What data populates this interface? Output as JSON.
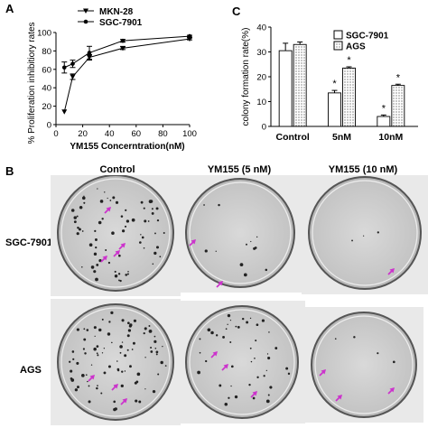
{
  "panels": {
    "a": "A",
    "b": "B",
    "c": "C"
  },
  "chart_data": [
    {
      "type": "line",
      "xlabel": "YM155 Concerntration(nM)",
      "ylabel": "% Proliferation inhibitiory rates",
      "xlim": [
        0,
        100
      ],
      "ylim": [
        0,
        100
      ],
      "xticks": [
        "0",
        "20",
        "40",
        "60",
        "80",
        "100"
      ],
      "yticks": [
        "0",
        "20",
        "40",
        "60",
        "80",
        "100"
      ],
      "legend": "top-left",
      "series": [
        {
          "name": "MKN-28",
          "marker": "triangle",
          "color": "#000000",
          "x": [
            6.25,
            12.5,
            25,
            50,
            100
          ],
          "y": [
            14,
            52,
            73,
            83,
            93
          ],
          "err": [
            0,
            3,
            3,
            1.5,
            1
          ]
        },
        {
          "name": "SGC-7901",
          "marker": "circle",
          "color": "#000000",
          "x": [
            6.25,
            12.5,
            25,
            50,
            100
          ],
          "y": [
            62,
            66,
            78,
            91,
            96
          ],
          "err": [
            6,
            4,
            7,
            1.5,
            1
          ]
        }
      ]
    },
    {
      "type": "bar",
      "title": "C",
      "ylabel": "colony formation rate(%)",
      "ylim": [
        0,
        40
      ],
      "yticks": [
        "0",
        "10",
        "20",
        "30",
        "40"
      ],
      "categories": [
        "Control",
        "5nM",
        "10nM"
      ],
      "legend": "top-right",
      "annotations": [
        "*",
        "*",
        "*",
        "*"
      ],
      "series": [
        {
          "name": "SGC-7901",
          "pattern": "blank",
          "values": [
            30.5,
            13.5,
            4
          ],
          "err": [
            3,
            1,
            0.6
          ]
        },
        {
          "name": "AGS",
          "pattern": "dotted",
          "values": [
            33,
            23.5,
            16.5
          ],
          "err": [
            1,
            0.5,
            0.5
          ]
        }
      ]
    }
  ],
  "panel_b": {
    "columns": [
      "Control",
      "YM155 (5 nM)",
      "YM155 (10 nM)"
    ],
    "rows": [
      "SGC-7901",
      "AGS"
    ],
    "arrow_color": "#cc33cc"
  }
}
